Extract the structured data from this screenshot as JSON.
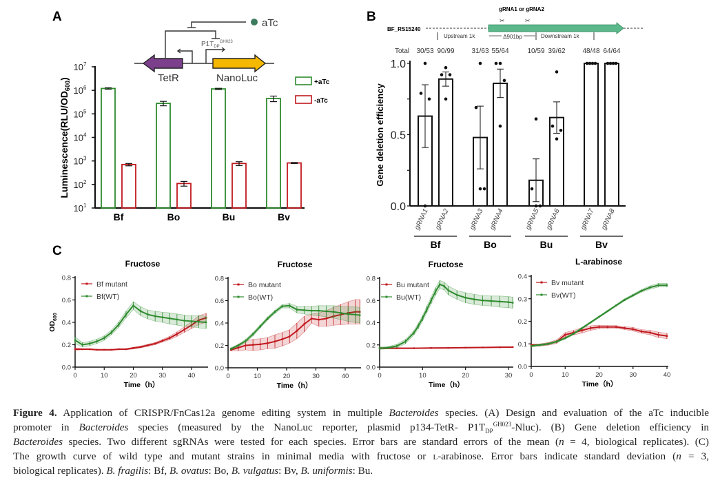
{
  "colors": {
    "green": "#2e8b2e",
    "red": "#c0181e",
    "purple": "#7b3f8c",
    "yellow": "#f5b800",
    "teal": "#5ab88a",
    "atc_dot": "#3d7d5f"
  },
  "panelA": {
    "label": "A",
    "diagram": {
      "atc": "aTc",
      "promoter": "P1T",
      "promoter_sub": "DP",
      "promoter_sup": "GH023",
      "gene_left": "TetR",
      "gene_right": "NanoLuc"
    },
    "legend": [
      {
        "label": "+aTc"
      },
      {
        "label": "-aTc"
      }
    ]
  },
  "panelB": {
    "label": "B",
    "diagram": {
      "locus": "BF_RS15240",
      "guides": "gRNA1 or gRNA2",
      "upstream": "Upstream 1k",
      "deletion": "Δ901bp",
      "downstream": "Downstream 1k"
    },
    "total_label": "Total"
  },
  "panelC": {
    "label": "C"
  },
  "chart_data": [
    {
      "type": "bar",
      "id": "A",
      "scale": "log",
      "ylabel": "Luminescence(RLU/OD600)",
      "ylabel_main": "Luminescence(RLU/OD",
      "ylabel_sub": "600",
      "ylabel_end": ")",
      "ylim": [
        10,
        10000000
      ],
      "yticks": [
        "1",
        "2",
        "3",
        "4",
        "5",
        "6",
        "7"
      ],
      "ytick_base": "10",
      "categories": [
        "Bf",
        "Bo",
        "Bu",
        "Bv"
      ],
      "series": [
        {
          "name": "+aTc",
          "values": [
            1200000,
            280000,
            1150000,
            450000
          ],
          "err": [
            80000,
            60000,
            70000,
            120000
          ]
        },
        {
          "name": "-aTc",
          "values": [
            700,
            110,
            780,
            820
          ],
          "err": [
            80,
            25,
            150,
            40
          ]
        }
      ]
    },
    {
      "type": "bar",
      "id": "B",
      "ylabel": "Gene deletion efficiency",
      "ylim": [
        0,
        1
      ],
      "yticks": [
        "0.0",
        "0.5",
        "1.0"
      ],
      "categories": [
        "gRNA1",
        "gRNA2",
        "gRNA3",
        "gRNA4",
        "gRNA5",
        "gRNA6",
        "gRNA7",
        "gRNA8"
      ],
      "groups": [
        {
          "name": "Bf",
          "members": [
            0,
            1
          ]
        },
        {
          "name": "Bo",
          "members": [
            2,
            3
          ]
        },
        {
          "name": "Bu",
          "members": [
            4,
            5
          ]
        },
        {
          "name": "Bv",
          "members": [
            6,
            7
          ]
        }
      ],
      "totals": [
        "30/53",
        "90/99",
        "31/63",
        "55/64",
        "10/59",
        "39/62",
        "48/48",
        "64/64"
      ],
      "values": [
        0.63,
        0.89,
        0.48,
        0.86,
        0.18,
        0.62,
        1.0,
        1.0
      ],
      "sem": [
        0.22,
        0.05,
        0.22,
        0.1,
        0.15,
        0.11,
        0,
        0
      ],
      "points": [
        [
          1.0,
          0.79,
          0.75,
          0.0
        ],
        [
          0.97,
          0.92,
          0.92,
          0.75
        ],
        [
          1.0,
          0.69,
          0.12,
          0.12
        ],
        [
          1.0,
          1.0,
          0.88,
          0.56
        ],
        [
          0.61,
          0.12,
          0.0,
          0.0
        ],
        [
          0.94,
          0.56,
          0.53,
          0.47
        ],
        [
          1,
          1,
          1,
          1
        ],
        [
          1,
          1,
          1,
          1
        ]
      ]
    },
    {
      "type": "line",
      "id": "C1",
      "title": "Fructose",
      "xlabel": "Time（h）",
      "ylabel": "OD600",
      "ylabel_main": "OD",
      "ylabel_sub": "600",
      "xlim": [
        0,
        45
      ],
      "ylim": [
        0,
        0.8
      ],
      "xticks": [
        "0",
        "10",
        "20",
        "30",
        "40"
      ],
      "yticks": [
        "0.0",
        "0.2",
        "0.4",
        "0.6",
        "0.8"
      ],
      "series": [
        {
          "name": "Bf mutant",
          "color": "red",
          "x": [
            0,
            2.5,
            5,
            7.5,
            10,
            12.5,
            15,
            17.5,
            20,
            22.5,
            25,
            27.5,
            30,
            32.5,
            35,
            37.5,
            40,
            42.5,
            45
          ],
          "y": [
            0.16,
            0.16,
            0.16,
            0.155,
            0.155,
            0.155,
            0.16,
            0.16,
            0.17,
            0.18,
            0.195,
            0.21,
            0.235,
            0.26,
            0.295,
            0.335,
            0.375,
            0.42,
            0.44
          ],
          "sd": [
            0.01,
            0.005,
            0.005,
            0.005,
            0.005,
            0.005,
            0.005,
            0.005,
            0.008,
            0.008,
            0.01,
            0.01,
            0.012,
            0.015,
            0.02,
            0.025,
            0.03,
            0.04,
            0.04
          ]
        },
        {
          "name": "Bf(WT)",
          "color": "green",
          "x": [
            0,
            2.5,
            5,
            7.5,
            10,
            12.5,
            15,
            17.5,
            20,
            22.5,
            25,
            27.5,
            30,
            32.5,
            35,
            37.5,
            40,
            42.5,
            45
          ],
          "y": [
            0.24,
            0.2,
            0.21,
            0.23,
            0.26,
            0.31,
            0.38,
            0.47,
            0.55,
            0.5,
            0.47,
            0.455,
            0.445,
            0.435,
            0.425,
            0.415,
            0.41,
            0.405,
            0.4
          ],
          "sd": [
            0.03,
            0.02,
            0.02,
            0.02,
            0.02,
            0.02,
            0.025,
            0.03,
            0.035,
            0.04,
            0.04,
            0.045,
            0.045,
            0.05,
            0.05,
            0.05,
            0.05,
            0.055,
            0.055
          ]
        }
      ]
    },
    {
      "type": "line",
      "id": "C2",
      "title": "Fructose",
      "xlabel": "Time（h）",
      "xlim": [
        0,
        45
      ],
      "ylim": [
        0,
        0.8
      ],
      "xticks": [
        "0",
        "10",
        "20",
        "30",
        "40"
      ],
      "yticks": [
        "0.0",
        "0.2",
        "0.4",
        "0.6",
        "0.8"
      ],
      "series": [
        {
          "name": "Bo mutant",
          "color": "red",
          "x": [
            1,
            3.5,
            6,
            8.5,
            11,
            13.5,
            16,
            18.5,
            21,
            23.5,
            26,
            28.5,
            31,
            33.5,
            36,
            38.5,
            41,
            43.5,
            45
          ],
          "y": [
            0.16,
            0.18,
            0.2,
            0.205,
            0.21,
            0.22,
            0.235,
            0.255,
            0.28,
            0.33,
            0.39,
            0.44,
            0.43,
            0.44,
            0.46,
            0.475,
            0.49,
            0.5,
            0.5
          ],
          "sd": [
            0.01,
            0.03,
            0.04,
            0.05,
            0.05,
            0.05,
            0.06,
            0.06,
            0.06,
            0.07,
            0.07,
            0.04,
            0.06,
            0.07,
            0.08,
            0.09,
            0.1,
            0.11,
            0.11
          ]
        },
        {
          "name": "Bo(WT)",
          "color": "green",
          "x": [
            1,
            3.5,
            6,
            8.5,
            11,
            13.5,
            16,
            18.5,
            21,
            23.5,
            26,
            28.5,
            31,
            33.5,
            36,
            38.5,
            41,
            43.5,
            45
          ],
          "y": [
            0.17,
            0.2,
            0.24,
            0.3,
            0.37,
            0.44,
            0.5,
            0.55,
            0.555,
            0.52,
            0.515,
            0.51,
            0.51,
            0.505,
            0.5,
            0.49,
            0.48,
            0.475,
            0.47
          ],
          "sd": [
            0.01,
            0.01,
            0.015,
            0.015,
            0.015,
            0.015,
            0.015,
            0.015,
            0.02,
            0.03,
            0.035,
            0.04,
            0.045,
            0.05,
            0.055,
            0.06,
            0.065,
            0.07,
            0.07
          ]
        }
      ]
    },
    {
      "type": "line",
      "id": "C3",
      "title": "Fructose",
      "xlabel": "Time（h）",
      "xlim": [
        0,
        31
      ],
      "ylim": [
        0,
        0.8
      ],
      "xticks": [
        "0",
        "10",
        "20",
        "30"
      ],
      "yticks": [
        "0.0",
        "0.2",
        "0.4",
        "0.6",
        "0.8"
      ],
      "series": [
        {
          "name": "Bu mutant",
          "color": "red",
          "x": [
            0,
            4,
            8,
            12,
            16,
            20,
            24,
            28,
            31
          ],
          "y": [
            0.17,
            0.17,
            0.17,
            0.172,
            0.173,
            0.175,
            0.177,
            0.179,
            0.18
          ],
          "sd": [
            0.008,
            0.005,
            0.004,
            0.004,
            0.004,
            0.004,
            0.004,
            0.004,
            0.004
          ]
        },
        {
          "name": "Bu(WT)",
          "color": "green",
          "x": [
            0,
            2,
            4,
            6,
            8,
            9,
            10,
            11,
            12,
            13,
            14,
            15,
            16,
            18,
            20,
            22,
            24,
            26,
            28,
            30,
            31
          ],
          "y": [
            0.17,
            0.175,
            0.19,
            0.23,
            0.31,
            0.37,
            0.44,
            0.52,
            0.6,
            0.68,
            0.745,
            0.73,
            0.69,
            0.65,
            0.625,
            0.61,
            0.6,
            0.595,
            0.59,
            0.585,
            0.58
          ],
          "sd": [
            0.01,
            0.01,
            0.015,
            0.02,
            0.02,
            0.025,
            0.025,
            0.03,
            0.03,
            0.035,
            0.035,
            0.035,
            0.04,
            0.04,
            0.045,
            0.045,
            0.045,
            0.045,
            0.05,
            0.05,
            0.05
          ]
        }
      ]
    },
    {
      "type": "line",
      "id": "C4",
      "title": "L-arabinose",
      "xlabel": "Time（h）",
      "xlim": [
        0,
        40
      ],
      "ylim": [
        0,
        0.4
      ],
      "xticks": [
        "0",
        "10",
        "20",
        "30",
        "40"
      ],
      "yticks": [
        "0.0",
        "0.1",
        "0.2",
        "0.3",
        "0.4"
      ],
      "series": [
        {
          "name": "Bv mutant",
          "color": "red",
          "x": [
            0,
            2.5,
            5,
            7.5,
            10,
            12.5,
            15,
            17.5,
            20,
            22.5,
            25,
            27.5,
            30,
            32.5,
            35,
            37.5,
            40
          ],
          "y": [
            0.095,
            0.095,
            0.1,
            0.11,
            0.14,
            0.15,
            0.16,
            0.17,
            0.175,
            0.175,
            0.175,
            0.17,
            0.165,
            0.155,
            0.15,
            0.14,
            0.135
          ],
          "sd": [
            0.005,
            0.005,
            0.006,
            0.008,
            0.01,
            0.01,
            0.012,
            0.01,
            0.008,
            0.006,
            0.006,
            0.006,
            0.008,
            0.008,
            0.01,
            0.012,
            0.012
          ]
        },
        {
          "name": "Bv(WT)",
          "color": "green",
          "x": [
            0,
            2.5,
            5,
            7.5,
            10,
            12.5,
            15,
            17.5,
            20,
            22.5,
            25,
            27.5,
            30,
            32.5,
            35,
            37.5,
            40
          ],
          "y": [
            0.09,
            0.095,
            0.1,
            0.11,
            0.125,
            0.145,
            0.17,
            0.195,
            0.22,
            0.245,
            0.27,
            0.295,
            0.315,
            0.335,
            0.35,
            0.36,
            0.36
          ],
          "sd": [
            0.004,
            0.004,
            0.004,
            0.004,
            0.004,
            0.004,
            0.004,
            0.004,
            0.004,
            0.004,
            0.004,
            0.005,
            0.005,
            0.006,
            0.007,
            0.008,
            0.008
          ]
        }
      ]
    }
  ],
  "caption": {
    "l1": {
      "a": "Figure 4.",
      "b": " Application of CRISPR/FnCas12a genome editing system in multiple ",
      "c": "Bacteroides",
      "d": " species. (A) Design and evaluation of the aTc inducible"
    },
    "l2": {
      "a": "promoter in ",
      "b": "Bacteroides",
      "c": " species (measured by the NanoLuc reporter, plasmid p134-TetR- P1T",
      "sub": "DP",
      "sup": "GH023",
      "d": "-Nluc). (B) Gene deletion efficiency in"
    },
    "l3": {
      "a": "Bacteroides",
      "b": " species. Two different sgRNAs were tested for each species. Error bars are standard errors of the mean (",
      "n": "n",
      "c": " = 4, biological replicates). (C)"
    },
    "l4": {
      "a": "The growth curve of wild type and mutant strains in minimal media with fructose or ",
      "sc": "l",
      "b": "-arabinose. Error bars indicate standard deviation (",
      "n": "n",
      "c": " = 3,"
    },
    "l5": {
      "a": "biological replicates). ",
      "b": "B. fragilis",
      "c": ": Bf, ",
      "d": "B. ovatus",
      "e": ": Bo, ",
      "f": "B. vulgatus",
      "g": ": Bv, ",
      "h": "B. uniformis",
      "i": ": Bu."
    }
  }
}
